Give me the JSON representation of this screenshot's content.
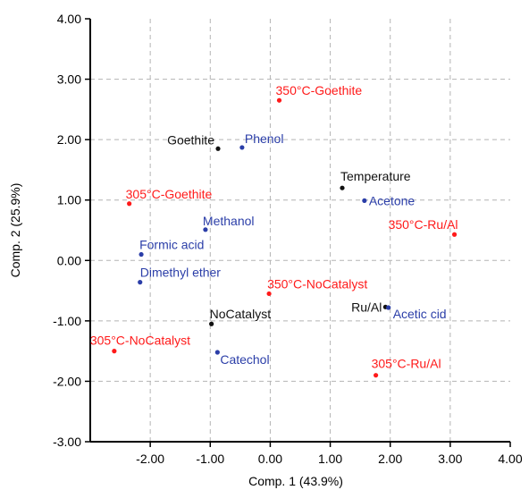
{
  "chart_data": {
    "type": "scatter",
    "title": "",
    "xlabel": "Comp. 1 (43.9%)",
    "ylabel": "Comp. 2 (25.9%)",
    "xlim": [
      -3.0,
      4.0
    ],
    "ylim": [
      -3.0,
      4.0
    ],
    "grid": true,
    "x_ticks": [
      "-2.00",
      "-1.00",
      "0.00",
      "1.00",
      "2.00",
      "3.00",
      "4.00"
    ],
    "y_ticks": [
      "-3.00",
      "-2.00",
      "-1.00",
      "0.00",
      "1.00",
      "2.00",
      "3.00",
      "4.00"
    ],
    "colors": {
      "experiment": "#ff1a1a",
      "compound": "#2b3ea8",
      "variable": "#111111"
    },
    "points": [
      {
        "label": "350°C-Goethite",
        "x": 0.15,
        "y": 2.65,
        "group": "experiment",
        "anchor": "start",
        "dx": -4,
        "dy": -6
      },
      {
        "label": "Goethite",
        "x": -0.87,
        "y": 1.85,
        "group": "variable",
        "anchor": "end",
        "dx": -4,
        "dy": -5
      },
      {
        "label": "Phenol",
        "x": -0.47,
        "y": 1.87,
        "group": "compound",
        "anchor": "start",
        "dx": 3,
        "dy": -5
      },
      {
        "label": "Temperature",
        "x": 1.2,
        "y": 1.2,
        "group": "variable",
        "anchor": "start",
        "dx": -2,
        "dy": -8
      },
      {
        "label": "Acetone",
        "x": 1.57,
        "y": 0.99,
        "group": "compound",
        "anchor": "start",
        "dx": 5,
        "dy": 5
      },
      {
        "label": "305°C-Goethite",
        "x": -2.35,
        "y": 0.94,
        "group": "experiment",
        "anchor": "start",
        "dx": -4,
        "dy": -6
      },
      {
        "label": "Methanol",
        "x": -1.08,
        "y": 0.51,
        "group": "compound",
        "anchor": "start",
        "dx": -3,
        "dy": -5
      },
      {
        "label": "350°C-Ru/Al",
        "x": 3.07,
        "y": 0.43,
        "group": "experiment",
        "anchor": "end",
        "dx": 4,
        "dy": -6
      },
      {
        "label": "Formic acid",
        "x": -2.15,
        "y": 0.1,
        "group": "compound",
        "anchor": "start",
        "dx": -2,
        "dy": -6
      },
      {
        "label": "Dimethyl ether",
        "x": -2.17,
        "y": -0.36,
        "group": "compound",
        "anchor": "start",
        "dx": 0,
        "dy": -6
      },
      {
        "label": "350°C-NoCatalyst",
        "x": -0.02,
        "y": -0.55,
        "group": "experiment",
        "anchor": "start",
        "dx": -2,
        "dy": -6
      },
      {
        "label": "Ru/Al",
        "x": 1.92,
        "y": -0.77,
        "group": "variable",
        "anchor": "end",
        "dx": -4,
        "dy": 5
      },
      {
        "label": "Acetic cid",
        "x": 1.97,
        "y": -0.78,
        "group": "compound",
        "anchor": "start",
        "dx": 5,
        "dy": 12
      },
      {
        "label": "NoCatalyst",
        "x": -0.98,
        "y": -1.05,
        "group": "variable",
        "anchor": "start",
        "dx": -2,
        "dy": -6
      },
      {
        "label": "305°C-NoCatalyst",
        "x": -2.6,
        "y": -1.5,
        "group": "experiment",
        "anchor": "start",
        "dx": -27,
        "dy": -7
      },
      {
        "label": "Catechol",
        "x": -0.88,
        "y": -1.52,
        "group": "compound",
        "anchor": "start",
        "dx": 3,
        "dy": 13
      },
      {
        "label": "305°C-Ru/Al",
        "x": 1.76,
        "y": -1.9,
        "group": "experiment",
        "anchor": "start",
        "dx": -5,
        "dy": -8
      }
    ]
  }
}
